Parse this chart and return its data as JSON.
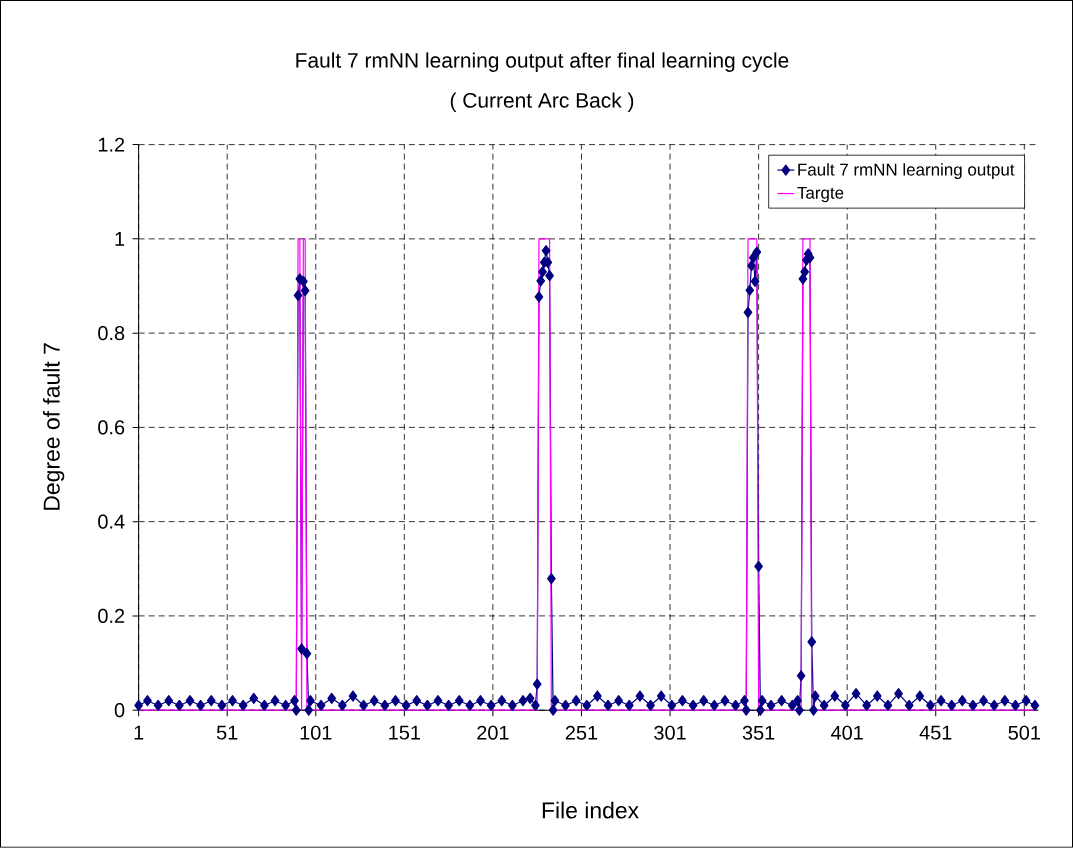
{
  "chart_data": {
    "type": "line",
    "title": "Fault 7 rmNN learning output after final learning cycle",
    "subtitle": "( Current Arc Back )",
    "xlabel": "File index",
    "ylabel": "Degree of fault 7",
    "xlim": [
      1,
      509
    ],
    "xticks": [
      1,
      51,
      101,
      151,
      201,
      251,
      301,
      351,
      401,
      451,
      501
    ],
    "ylim": [
      0,
      1.2
    ],
    "yticks": [
      0,
      0.2,
      0.4,
      0.6,
      0.8,
      1,
      1.2
    ],
    "grid": true,
    "legend": "top right",
    "series": [
      {
        "name": "Fault 7 rmNN learning output",
        "color": "#000080",
        "marker": "diamond",
        "x": [
          1,
          6,
          12,
          18,
          24,
          30,
          36,
          42,
          48,
          54,
          60,
          66,
          72,
          78,
          84,
          89,
          90,
          91,
          92,
          93,
          94,
          95,
          96,
          97,
          98,
          104,
          110,
          116,
          122,
          128,
          134,
          140,
          146,
          152,
          158,
          164,
          170,
          176,
          182,
          188,
          194,
          200,
          206,
          212,
          218,
          222,
          225,
          226,
          227,
          228,
          229,
          230,
          231,
          232,
          233,
          234,
          235,
          236,
          242,
          248,
          254,
          260,
          266,
          272,
          278,
          284,
          290,
          296,
          302,
          308,
          314,
          320,
          326,
          332,
          338,
          343,
          344,
          345,
          346,
          347,
          348,
          349,
          350,
          351,
          352,
          353,
          358,
          364,
          370,
          373,
          374,
          375,
          376,
          377,
          378,
          379,
          380,
          381,
          382,
          383,
          388,
          394,
          400,
          406,
          412,
          418,
          424,
          430,
          436,
          442,
          448,
          454,
          460,
          466,
          472,
          478,
          484,
          490,
          496,
          502,
          507
        ],
        "values": [
          0.01,
          0.02,
          0.01,
          0.02,
          0.01,
          0.02,
          0.01,
          0.02,
          0.01,
          0.02,
          0.01,
          0.025,
          0.01,
          0.02,
          0.01,
          0.02,
          0.0,
          0.88,
          0.915,
          0.13,
          0.91,
          0.89,
          0.12,
          0.0,
          0.02,
          0.01,
          0.025,
          0.01,
          0.03,
          0.01,
          0.02,
          0.01,
          0.02,
          0.01,
          0.02,
          0.01,
          0.02,
          0.01,
          0.02,
          0.01,
          0.02,
          0.01,
          0.02,
          0.01,
          0.02,
          0.025,
          0.01,
          0.055,
          0.877,
          0.911,
          0.93,
          0.95,
          0.975,
          0.95,
          0.922,
          0.279,
          0.0,
          0.02,
          0.01,
          0.02,
          0.01,
          0.03,
          0.01,
          0.02,
          0.01,
          0.03,
          0.01,
          0.03,
          0.01,
          0.02,
          0.01,
          0.02,
          0.01,
          0.02,
          0.01,
          0.02,
          0.0,
          0.844,
          0.891,
          0.943,
          0.96,
          0.91,
          0.972,
          0.305,
          0.0,
          0.02,
          0.01,
          0.02,
          0.01,
          0.02,
          0.0,
          0.073,
          0.915,
          0.93,
          0.955,
          0.968,
          0.96,
          0.145,
          0.0,
          0.03,
          0.01,
          0.03,
          0.01,
          0.035,
          0.01,
          0.03,
          0.01,
          0.035,
          0.01,
          0.03,
          0.01,
          0.02,
          0.01,
          0.02,
          0.01,
          0.02,
          0.01,
          0.02,
          0.01,
          0.02,
          0.01
        ]
      },
      {
        "name": "Targte",
        "color": "#ff00ff",
        "marker": "none",
        "x": [
          1,
          90,
          91,
          92,
          93,
          94,
          95,
          96,
          226,
          227,
          233,
          234,
          344,
          345,
          350,
          351,
          375,
          376,
          380,
          381,
          507
        ],
        "values": [
          0,
          0,
          1,
          1,
          0,
          1,
          1,
          0,
          0,
          1,
          1,
          0,
          0,
          1,
          1,
          0,
          0,
          1,
          1,
          0,
          0
        ]
      }
    ]
  }
}
